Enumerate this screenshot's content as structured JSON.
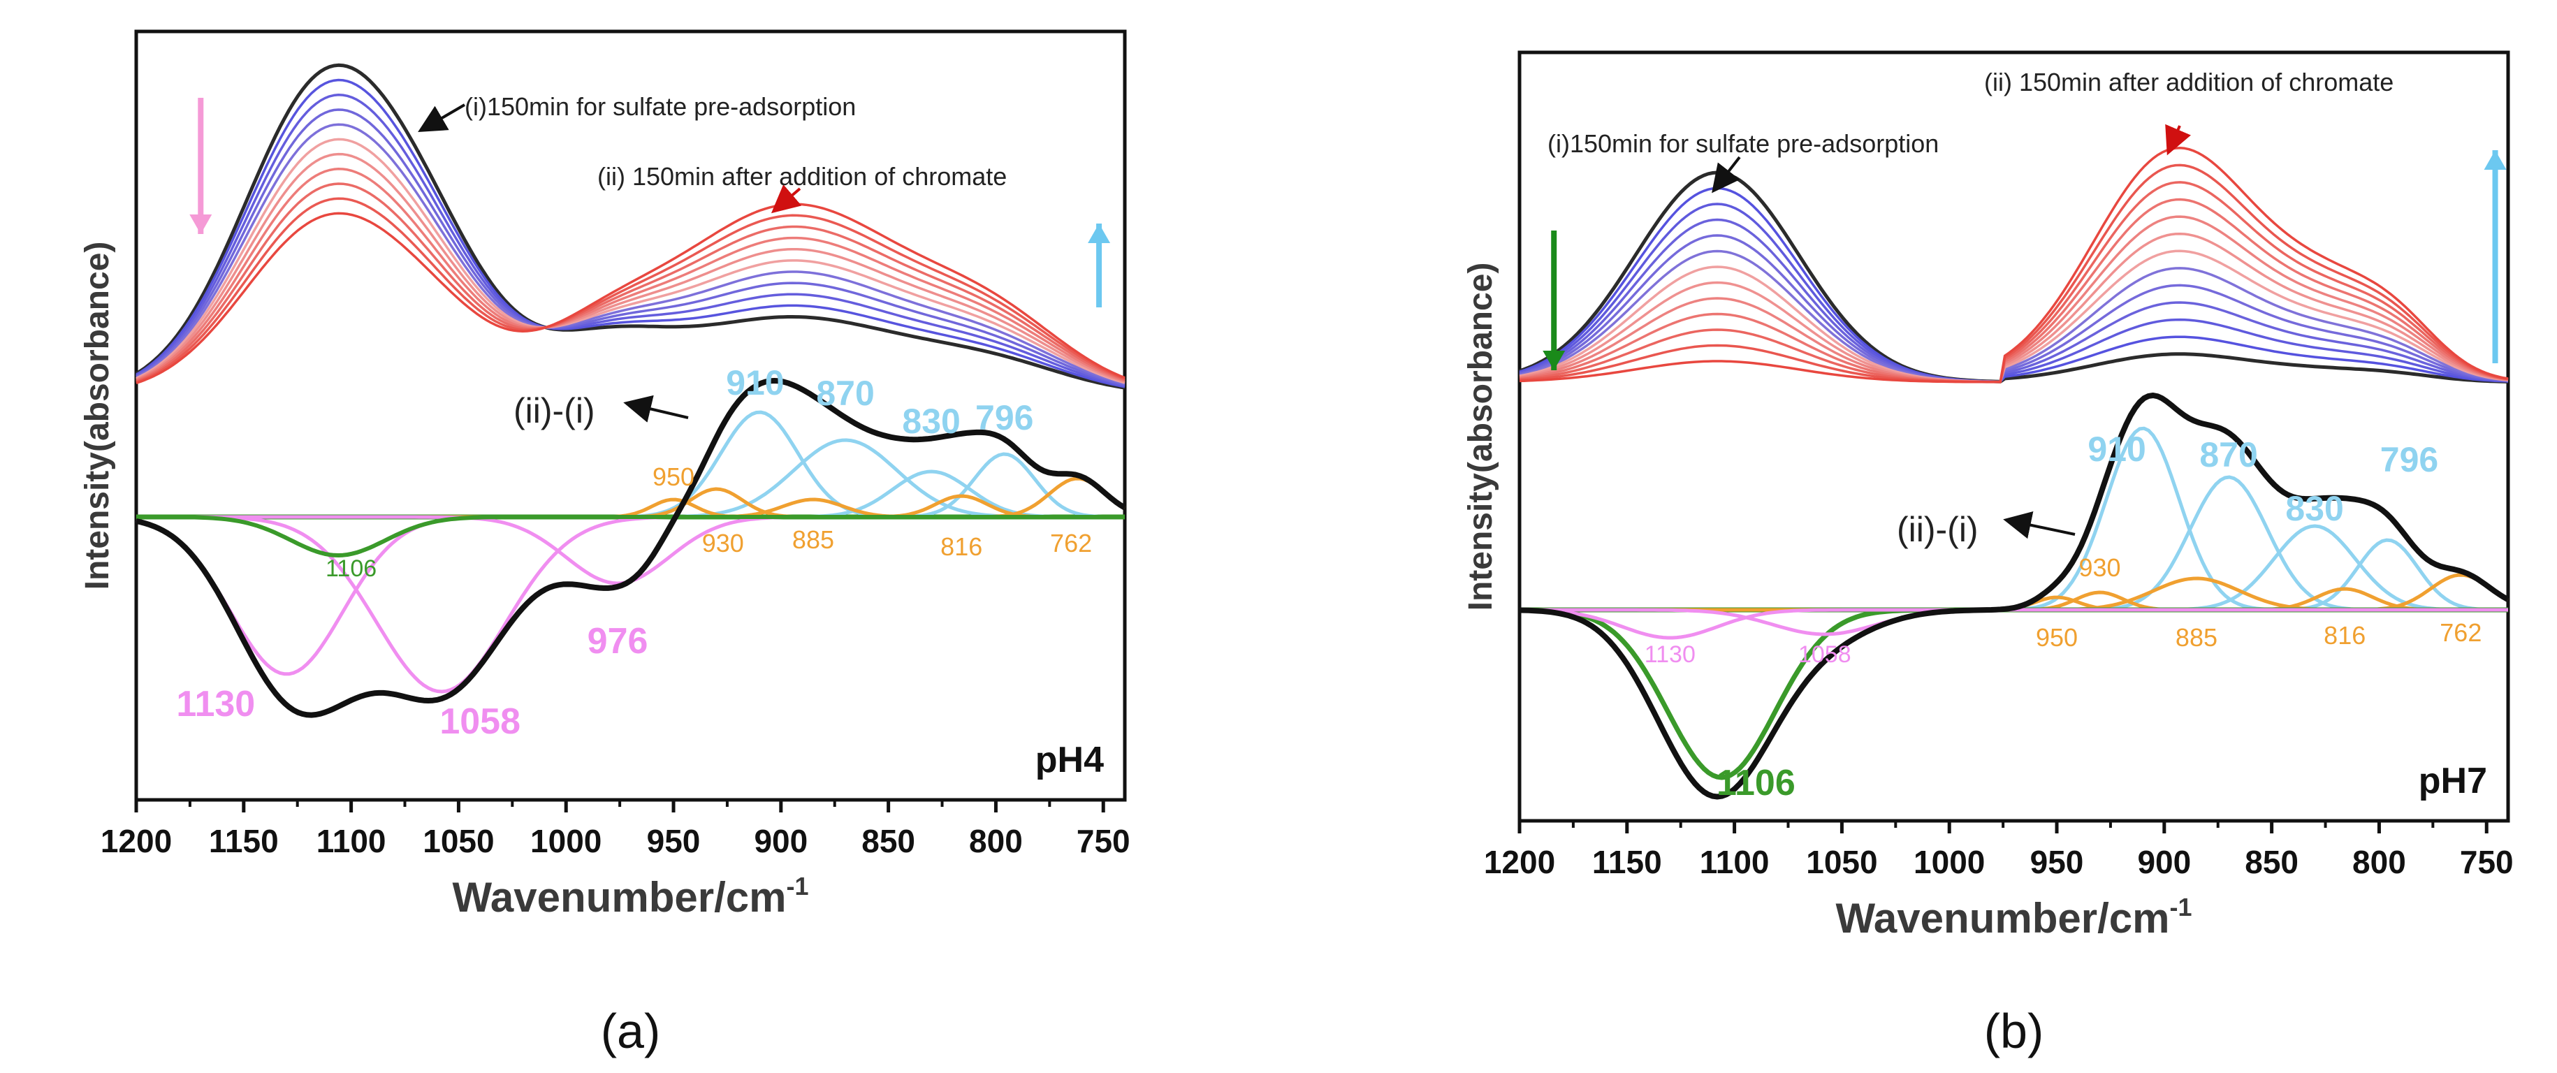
{
  "chart_data": [
    {
      "panel_label": "(a)",
      "type": "line",
      "condition_label": "pH4",
      "xlabel": "Wavenumber/cm",
      "xlabel_sup": "-1",
      "ylabel": "Intensity(absorbance)",
      "xlim": [
        1200,
        740
      ],
      "x_ticks": [
        1200,
        1150,
        1100,
        1050,
        1000,
        950,
        900,
        850,
        800,
        750
      ],
      "annotation_i": "(i)150min for sulfate pre-adsorption",
      "annotation_ii": "(ii) 150min after addition of chromate",
      "annotation_diff": "(ii)-(i)",
      "colors": {
        "initial": "#2b2b2b",
        "blue_series": "#4a4ae0",
        "red_series": "#e8473f",
        "difference": "#111111",
        "positive_fit": "#8fd3f0",
        "negative_fit": "#f08ef0",
        "weak_fit": "#f0a030",
        "sulfate_fit": "#3a9a2a",
        "arrow_down": "#f59ad6",
        "arrow_up": "#6cc8f0"
      },
      "overlay_series_count": 11,
      "components": {
        "positive_major": [
          910,
          870,
          830,
          796
        ],
        "positive_minor": [
          950,
          930,
          885,
          816,
          762
        ],
        "negative_major": [
          1130,
          1058,
          976
        ],
        "negative_minor": [
          1106
        ]
      },
      "peak_labels": {
        "p910": "910",
        "p870": "870",
        "p830": "830",
        "p796": "796",
        "p950": "950",
        "p930": "930",
        "p885": "885",
        "p816": "816",
        "p762": "762",
        "n1130": "1130",
        "n1058": "1058",
        "n976": "976",
        "n1106": "1106"
      }
    },
    {
      "panel_label": "(b)",
      "type": "line",
      "condition_label": "pH7",
      "xlabel": "Wavenumber/cm",
      "xlabel_sup": "-1",
      "ylabel": "Intensity(absorbance)",
      "xlim": [
        1200,
        740
      ],
      "x_ticks": [
        1200,
        1150,
        1100,
        1050,
        1000,
        950,
        900,
        850,
        800,
        750
      ],
      "annotation_i": "(i)150min for sulfate pre-adsorption",
      "annotation_ii": "(ii) 150min after addition of chromate",
      "annotation_diff": "(ii)-(i)",
      "colors": {
        "initial": "#2b2b2b",
        "blue_series": "#4a4ae0",
        "red_series": "#e8473f",
        "difference": "#111111",
        "positive_fit": "#8fd3f0",
        "negative_fit": "#f08ef0",
        "weak_fit": "#f0a030",
        "sulfate_fit": "#3a9a2a",
        "arrow_down": "#1a8a1a",
        "arrow_up": "#6cc8f0"
      },
      "overlay_series_count": 13,
      "components": {
        "positive_major": [
          910,
          870,
          830,
          796
        ],
        "positive_minor": [
          950,
          930,
          885,
          816,
          762
        ],
        "negative_major": [
          1106
        ],
        "negative_minor": [
          1130,
          1058
        ]
      },
      "peak_labels": {
        "p910": "910",
        "p870": "870",
        "p830": "830",
        "p796": "796",
        "p950": "950",
        "p930": "930",
        "p885": "885",
        "p816": "816",
        "p762": "762",
        "n1106": "1106",
        "n1130": "1130",
        "n1058": "1058"
      }
    }
  ]
}
